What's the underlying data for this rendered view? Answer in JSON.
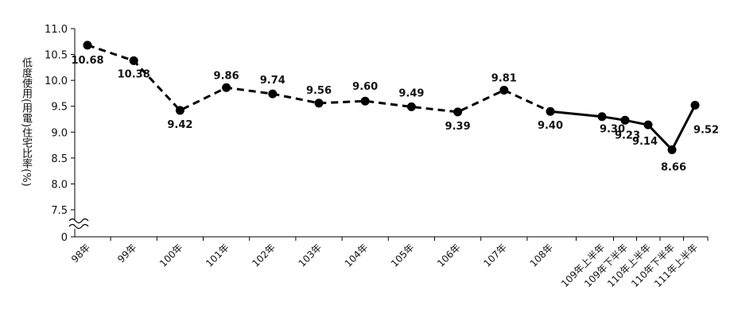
{
  "chart_data": {
    "type": "line",
    "title": "",
    "xlabel": "",
    "ylabel": "低度使用(用電)住宅比率(%)",
    "ylim": [
      7.5,
      11.0
    ],
    "y_ticks": [
      "11.0",
      "10.5",
      "10.0",
      "9.5",
      "9.0",
      "8.5",
      "8.0",
      "7.5",
      "0"
    ],
    "axis_break": true,
    "grid": false,
    "categories": [
      "98年",
      "99年",
      "100年",
      "101年",
      "102年",
      "103年",
      "104年",
      "105年",
      "106年",
      "107年",
      "108年",
      "109年上半年",
      "109年下半年",
      "110年上半年",
      "110年下半年",
      "111年上半年"
    ],
    "values": [
      10.68,
      10.38,
      9.42,
      9.86,
      9.74,
      9.56,
      9.6,
      9.49,
      9.39,
      9.81,
      9.4,
      9.3,
      9.23,
      9.14,
      8.66,
      9.52
    ],
    "value_labels": [
      "10.68",
      "10.38",
      "9.42",
      "9.86",
      "9.74",
      "9.56",
      "9.60",
      "9.49",
      "9.39",
      "9.81",
      "9.40",
      "9.30",
      "9.23",
      "9.14",
      "8.66",
      "9.52"
    ],
    "series": [
      {
        "style": "dashed",
        "range": [
          0,
          10
        ]
      },
      {
        "style": "solid",
        "range": [
          10,
          15
        ]
      }
    ],
    "colors": {
      "line": "#000000",
      "marker": "#000000"
    }
  }
}
